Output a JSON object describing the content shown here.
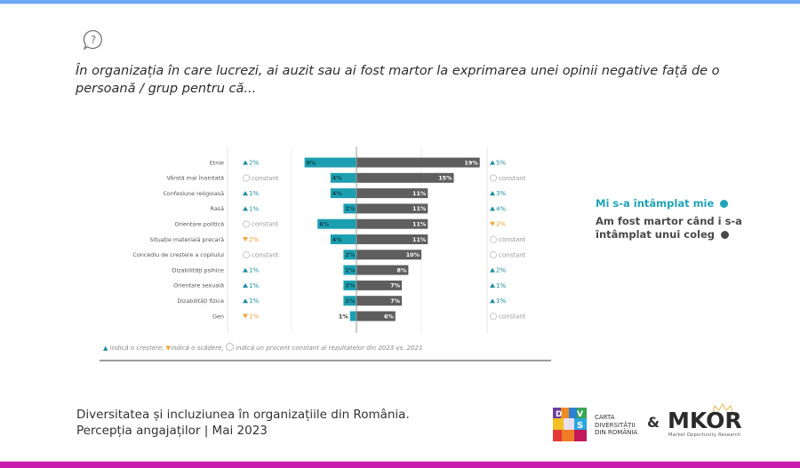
{
  "question": {
    "icon": "speech-bubble-question-icon",
    "text": "În organizația în care lucrezi, ai auzit sau ai fost martor la exprimarea unei opinii negative față de o persoană / grup pentru că..."
  },
  "legend": {
    "series1": "Mi s-a întâmplat mie",
    "series2": "Am fost martor când i s-a întâmplat unui coleg"
  },
  "colors": {
    "series1": "#1c9fb0",
    "series2": "#5e5e5e",
    "increase": "#1f8ea1",
    "decrease": "#f0a43a",
    "top_bar": "#6fa8f7",
    "bottom_bar": "#c81aab"
  },
  "note": {
    "increase": "indică o creștere,",
    "decrease": "indică o scădere,",
    "constant": "indică un procent constant al rezultatelor din 2023 vs. 2021"
  },
  "footer": {
    "line1": "Diversitatea și incluziunea în organizațiile din România.",
    "line2": "Percepția angajaților | Mai 2023"
  },
  "logos": {
    "cdr_text": [
      "CARTA",
      "DIVERSITĂȚII",
      "DIN ROMÂNIA"
    ],
    "amp": "&",
    "mkor": "MKOR",
    "mkor_sub": "Market Opportunity Research"
  },
  "chart_data": {
    "type": "bar",
    "orientation": "horizontal-diverging",
    "title": "În organizația în care lucrezi, ai auzit sau ai fost martor la exprimarea unei opinii negative față de o persoană / grup pentru că...",
    "categories": [
      "Etnie",
      "Vârstă mai înaintată",
      "Confesiune religioasă",
      "Rasă",
      "Orientare politică",
      "Situație materială precară",
      "Concediu de creștere a copilului",
      "Dizabilități psihice",
      "Orientare sexuală",
      "Dizabilități fizice",
      "Gen"
    ],
    "series": [
      {
        "name": "Mi s-a întâmplat mie",
        "side": "left",
        "values": [
          8,
          4,
          4,
          2,
          6,
          4,
          2,
          2,
          2,
          2,
          1
        ],
        "unit": "%",
        "change_vs_2021": [
          {
            "dir": "up",
            "label": "2%"
          },
          {
            "dir": "constant",
            "label": "constant"
          },
          {
            "dir": "up",
            "label": "1%"
          },
          {
            "dir": "up",
            "label": "1%"
          },
          {
            "dir": "constant",
            "label": "constant"
          },
          {
            "dir": "down",
            "label": "2%"
          },
          {
            "dir": "constant",
            "label": "constant"
          },
          {
            "dir": "up",
            "label": "1%"
          },
          {
            "dir": "up",
            "label": "1%"
          },
          {
            "dir": "up",
            "label": "1%"
          },
          {
            "dir": "down",
            "label": "1%"
          }
        ]
      },
      {
        "name": "Am fost martor când i s-a întâmplat unui coleg",
        "side": "right",
        "values": [
          19,
          15,
          11,
          11,
          11,
          11,
          10,
          8,
          7,
          7,
          6
        ],
        "unit": "%",
        "change_vs_2021": [
          {
            "dir": "up",
            "label": "5%"
          },
          {
            "dir": "constant",
            "label": "constant"
          },
          {
            "dir": "up",
            "label": "3%"
          },
          {
            "dir": "up",
            "label": "4%"
          },
          {
            "dir": "down",
            "label": "2%"
          },
          {
            "dir": "constant",
            "label": "constant"
          },
          {
            "dir": "constant",
            "label": "constant"
          },
          {
            "dir": "up",
            "label": "2%"
          },
          {
            "dir": "up",
            "label": "1%"
          },
          {
            "dir": "up",
            "label": "1%"
          },
          {
            "dir": "constant",
            "label": "constant"
          }
        ]
      }
    ],
    "xlim": [
      -20,
      20
    ],
    "gridlines": [
      -20,
      -10,
      0,
      10,
      20
    ],
    "grid": true,
    "legend_position": "right"
  }
}
